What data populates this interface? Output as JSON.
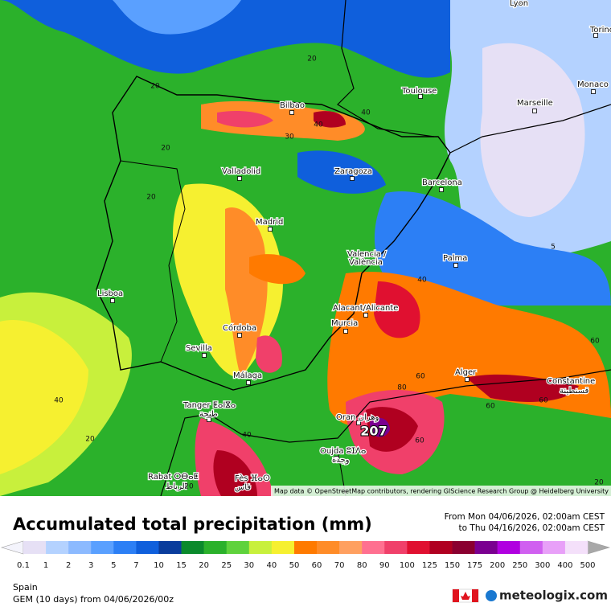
{
  "map": {
    "cities": [
      "Lyon",
      "Torino",
      "Monaco",
      "Toulouse",
      "Marseille",
      "Bilbao",
      "Zaragoza",
      "Valladolid",
      "Barcelona",
      "Madrid",
      "Valencia /",
      "València",
      "Palma",
      "Lisboa",
      "Alacant/Alicante",
      "Murcia",
      "Córdoba",
      "Sevilla",
      "Málaga",
      "Alger",
      "Constantine",
      "قسنطينة",
      "Tanger ⵟⴰⵏⴵⴰ",
      "طنجة",
      "Oran وهران",
      "Oujda ⵓⵊⴷⴰ",
      "وجدة",
      "Rabat ⵔⴱⴰⵟ",
      "الرباط",
      "Fès ⴼⴰⵙ",
      "فاس"
    ],
    "contour_labels": [
      "20",
      "20",
      "20",
      "20",
      "20",
      "30",
      "40",
      "40",
      "40",
      "20",
      "40",
      "40",
      "60",
      "60",
      "60",
      "60",
      "60",
      "5",
      "207",
      "80",
      "20"
    ],
    "attribution": "Map data © OpenStreetMap contributors, rendering GIScience Research Group @ Heidelberg University"
  },
  "header": {
    "title": "Accumulated total precipitation (mm)",
    "period_from": "From Mon 04/06/2026, 02:00am CEST",
    "period_to": "to Thu 04/16/2026, 02:00am CEST"
  },
  "colorbar": {
    "ticks": [
      0.1,
      1,
      2,
      3,
      5,
      7,
      10,
      15,
      20,
      25,
      30,
      40,
      50,
      60,
      70,
      80,
      90,
      100,
      125,
      150,
      175,
      200,
      250,
      300,
      400,
      500
    ],
    "colors": [
      "#e6e0f5",
      "#b4d2ff",
      "#8cbaff",
      "#5aa0ff",
      "#2c7ff5",
      "#0f5fdc",
      "#0a3c9c",
      "#0b8a2c",
      "#2bb12b",
      "#5fd23c",
      "#c8f03c",
      "#f6f030",
      "#ff7a00",
      "#ff8c28",
      "#ffa060",
      "#ff7090",
      "#f0406a",
      "#e01030",
      "#b00020",
      "#8a0030",
      "#7a0090",
      "#b000e0",
      "#d060f0",
      "#e8a0f8",
      "#f4e0fa"
    ]
  },
  "footer": {
    "region": "Spain",
    "model": "GEM (10 days) from 04/06/2026/00z",
    "brand": "meteologix.com"
  }
}
